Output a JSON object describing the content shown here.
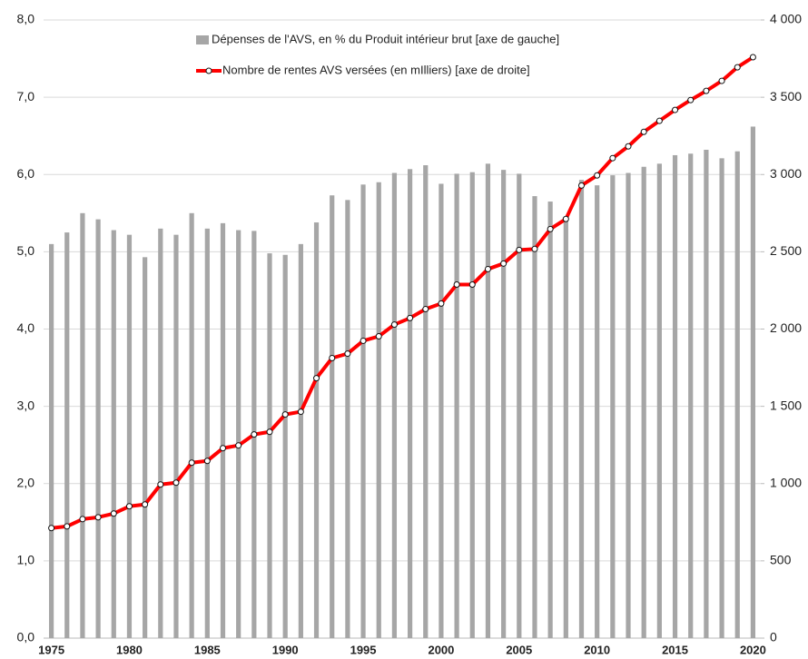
{
  "chart_data": {
    "type": "bar_line",
    "categories": [
      "1975",
      null,
      null,
      null,
      null,
      "1980",
      null,
      null,
      null,
      null,
      "1985",
      null,
      null,
      null,
      null,
      "1990",
      null,
      null,
      null,
      null,
      "1995",
      null,
      null,
      null,
      null,
      "2000",
      null,
      null,
      null,
      null,
      "2005",
      null,
      null,
      null,
      null,
      "2010",
      null,
      null,
      null,
      null,
      "2015",
      null,
      null,
      null,
      null,
      "2020"
    ],
    "series": [
      {
        "name": "Dépenses de l'AVS, en % du Produit intérieur brut [axe de gauche]",
        "type": "bar",
        "color": "#a6a6a6",
        "values": [
          5.1,
          5.25,
          5.5,
          5.42,
          5.28,
          5.22,
          4.93,
          5.3,
          5.22,
          5.5,
          5.3,
          5.37,
          5.28,
          5.27,
          4.98,
          4.96,
          5.1,
          5.38,
          5.73,
          5.67,
          5.87,
          5.9,
          6.02,
          6.07,
          6.12,
          5.88,
          6.01,
          6.03,
          6.14,
          6.06,
          6.01,
          5.72,
          5.65,
          5.45,
          5.93,
          5.86,
          5.99,
          6.02,
          6.1,
          6.14,
          6.25,
          6.27,
          6.32,
          6.21,
          6.3,
          6.62
        ]
      },
      {
        "name": "Nombre de rentes AVS versées (en mIlliers) [axe de droite]",
        "type": "line",
        "axis": "y2",
        "color": "#ff0000",
        "values": [
          712,
          723,
          770,
          782,
          806,
          853,
          865,
          994,
          1006,
          1135,
          1147,
          1229,
          1247,
          1318,
          1335,
          1447,
          1465,
          1682,
          1812,
          1841,
          1924,
          1953,
          2029,
          2071,
          2129,
          2165,
          2288,
          2288,
          2388,
          2424,
          2512,
          2518,
          2647,
          2712,
          2929,
          2994,
          3106,
          3182,
          3276,
          3347,
          3418,
          3482,
          3541,
          3606,
          3694,
          3759
        ]
      }
    ],
    "ylim": [
      0,
      8
    ],
    "yticks": [
      {
        "value": 0,
        "label": "0,0"
      },
      {
        "value": 1,
        "label": "1,0"
      },
      {
        "value": 2,
        "label": "2,0"
      },
      {
        "value": 3,
        "label": "3,0"
      },
      {
        "value": 4,
        "label": "4,0"
      },
      {
        "value": 5,
        "label": "5,0"
      },
      {
        "value": 6,
        "label": "6,0"
      },
      {
        "value": 7,
        "label": "7,0"
      },
      {
        "value": 8,
        "label": "8,0"
      }
    ],
    "y2lim": [
      0,
      4000
    ],
    "y2ticks": [
      0,
      500,
      {
        "value": 1000,
        "label": "1 000"
      },
      {
        "value": 1500,
        "label": "1 500"
      },
      {
        "value": 2000,
        "label": "2 000"
      },
      {
        "value": 2500,
        "label": "2 500"
      },
      {
        "value": 3000,
        "label": "3 000"
      },
      {
        "value": 3500,
        "label": "3 500"
      },
      {
        "value": 4000,
        "label": "4 000"
      }
    ],
    "grid": true,
    "legend": "top"
  }
}
